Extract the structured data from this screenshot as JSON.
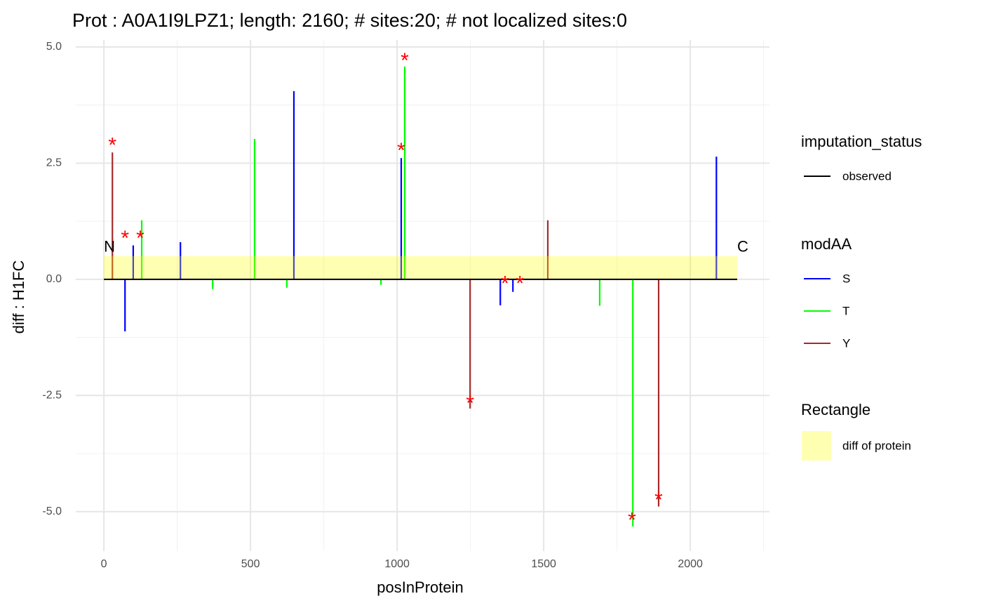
{
  "chart_data": {
    "type": "lollipop",
    "title": "Prot : A0A1I9LPZ1; length: 2160; # sites:20; # not localized sites:0",
    "x_label": "posInProtein",
    "y_label": "diff : H1FC",
    "xlim": [
      -96,
      2270
    ],
    "ylim": [
      -5.85,
      5.15
    ],
    "xticks": [
      0,
      500,
      1000,
      1500,
      2000
    ],
    "x_minor_ticks": [
      250,
      750,
      1250,
      1750,
      2250
    ],
    "yticks": [
      {
        "value": 5,
        "label": "5.0"
      },
      2.5,
      {
        "value": 0,
        "label": "0.0"
      },
      -2.5,
      {
        "value": -5,
        "label": "-5.0"
      }
    ],
    "y_minor_ticks": [
      3.75,
      1.25,
      -1.25,
      -3.75
    ],
    "grid": true,
    "series": [
      {
        "name": "S",
        "color": "#0000ff",
        "x": [
          72,
          100,
          261,
          648,
          1014,
          1352,
          1395,
          2089
        ],
        "values": [
          -1.12,
          0.73,
          0.8,
          4.05,
          2.61,
          -0.56,
          -0.27,
          2.64
        ]
      },
      {
        "name": "T",
        "color": "#00ff00",
        "x": [
          129,
          371,
          514,
          624,
          945,
          1026,
          1691,
          1804
        ],
        "values": [
          1.27,
          -0.21,
          3.02,
          -0.18,
          -0.12,
          4.58,
          -0.57,
          -5.32
        ]
      },
      {
        "name": "Y",
        "color": "#a52a2a",
        "x": [
          29,
          1249,
          1514,
          1892
        ],
        "values": [
          2.73,
          -2.78,
          1.27,
          -4.89
        ]
      }
    ],
    "modAA_title": "modAA",
    "significant": {
      "symbol": "*",
      "color": "#ff0000",
      "x": [
        29,
        72,
        124,
        1014,
        1026,
        1249,
        1368,
        1419,
        1801,
        1892
      ],
      "y": [
        2.95,
        0.95,
        0.95,
        2.84,
        4.77,
        -2.6,
        -0.03,
        -0.03,
        -5.12,
        -4.68
      ]
    },
    "protein": {
      "xrange": [
        0,
        2160
      ],
      "value": 0.5,
      "color": "#ffff00",
      "opacity": 0.3,
      "legend_title": "Rectangle",
      "name": "diff of protein",
      "terminal_labels": [
        "N",
        "C"
      ]
    },
    "imputation_status": {
      "title": "imputation_status",
      "entries": [
        "observed"
      ],
      "color": "#000000"
    }
  }
}
